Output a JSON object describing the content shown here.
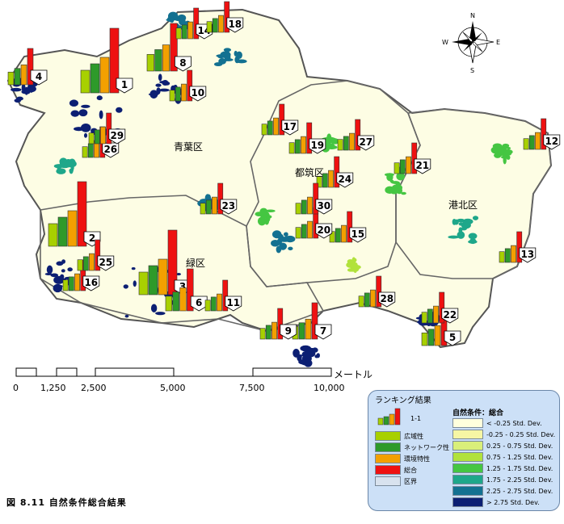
{
  "wards": [
    {
      "name": "青葉区"
    },
    {
      "name": "都筑区"
    },
    {
      "name": "港北区"
    },
    {
      "name": "緑区"
    }
  ],
  "ranks": [
    "1",
    "2",
    "3",
    "4",
    "5",
    "6",
    "7",
    "8",
    "9",
    "10",
    "11",
    "12",
    "13",
    "14",
    "15",
    "16",
    "17",
    "18",
    "19",
    "20",
    "21",
    "22",
    "23",
    "24",
    "25",
    "26",
    "27",
    "28",
    "29",
    "30"
  ],
  "compass": {
    "n": "N",
    "s": "S",
    "e": "E",
    "w": "W"
  },
  "scale": {
    "ticks": [
      "0",
      "1,250",
      "2,500",
      "5,000",
      "7,500",
      "10,000"
    ],
    "unit": "メートル"
  },
  "legend": {
    "title": "ランキング結果",
    "icon_label": "1-1",
    "items": [
      {
        "label": "広域性",
        "color": "#a8d000"
      },
      {
        "label": "ネットワーク性",
        "color": "#2e9a2a"
      },
      {
        "label": "環境特性",
        "color": "#f3a000"
      },
      {
        "label": "総合",
        "color": "#ee1111"
      },
      {
        "label": "区界",
        "color": "#d8e2ee"
      }
    ],
    "class_title": "自然条件：総合",
    "classes": [
      {
        "label": "< -0.25 Std. Dev.",
        "color": "#ffffdd"
      },
      {
        "label": "-0.25 - 0.25 Std. Dev.",
        "color": "#f6f6a4"
      },
      {
        "label": "0.25 - 0.75 Std. Dev.",
        "color": "#d9ef7a"
      },
      {
        "label": "0.75 - 1.25 Std. Dev.",
        "color": "#b1e23c"
      },
      {
        "label": "1.25 - 1.75 Std. Dev.",
        "color": "#45c642"
      },
      {
        "label": "1.75 - 2.25 Std. Dev.",
        "color": "#1ea78a"
      },
      {
        "label": "2.25 - 2.75 Std. Dev.",
        "color": "#137191"
      },
      {
        "label": "> 2.75 Std. Dev.",
        "color": "#0c1f73"
      }
    ]
  },
  "caption": "図 8.11  自然条件総合結果"
}
